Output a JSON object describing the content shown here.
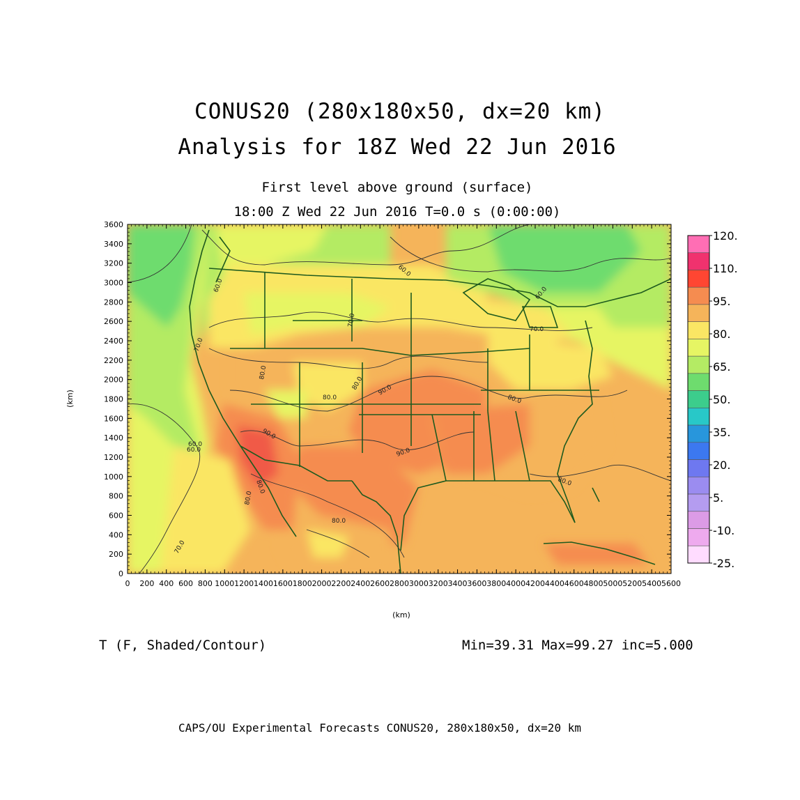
{
  "header": {
    "title_line1": "CONUS20 (280x180x50, dx=20 km)",
    "title_line2": "Analysis for 18Z Wed 22 Jun 2016",
    "subtitle_line1": "First level above ground (surface)",
    "subtitle_line2": "18:00 Z Wed 22 Jun 2016   T=0.0 s (0:00:00)"
  },
  "axes": {
    "xlabel": "(km)",
    "ylabel": "(km)",
    "x_ticks": [
      "0",
      "200",
      "400",
      "600",
      "800",
      "1000",
      "1200",
      "1400",
      "1600",
      "1800",
      "2000",
      "2200",
      "2400",
      "2600",
      "2800",
      "3000",
      "3200",
      "3400",
      "3600",
      "3800",
      "4000",
      "4200",
      "4400",
      "4600",
      "4800",
      "5000",
      "5200",
      "5400",
      "5600"
    ],
    "y_ticks": [
      "0",
      "200",
      "400",
      "600",
      "800",
      "1000",
      "1200",
      "1400",
      "1600",
      "1800",
      "2000",
      "2200",
      "2400",
      "2600",
      "2800",
      "3000",
      "3200",
      "3400",
      "3600"
    ],
    "xlim": [
      0,
      5600
    ],
    "ylim": [
      0,
      3600
    ]
  },
  "colorbar": {
    "labels": [
      "120.",
      "110.",
      "95.",
      "80.",
      "65.",
      "50.",
      "35.",
      "20.",
      "5.",
      "-10.",
      "-25."
    ],
    "colors": [
      "#ff6eb4",
      "#f0326e",
      "#ff4632",
      "#f58c50",
      "#f5b45a",
      "#fae664",
      "#e6f564",
      "#b4eb64",
      "#6edc6e",
      "#3ccd8c",
      "#28c8c8",
      "#2896dc",
      "#3c78f0",
      "#6e78f0",
      "#9b8cf0",
      "#b49cf0",
      "#dc9be6",
      "#eeaaee",
      "#ffdcff"
    ]
  },
  "contour_labels": [
    "60.0",
    "60.0",
    "70.0",
    "60.0",
    "60.0",
    "70.0",
    "80.0",
    "70.0",
    "80.0",
    "80.0",
    "90.0",
    "90.0",
    "80.0",
    "90.0",
    "80.0",
    "80.0",
    "80.0",
    "80.0",
    "70.0",
    "60.0"
  ],
  "footer": {
    "variable": "T (F, Shaded/Contour)",
    "stats": "Min=39.31  Max=99.27  inc=5.000",
    "credit": "CAPS/OU Experimental Forecasts  CONUS20, 280x180x50, dx=20 km"
  }
}
